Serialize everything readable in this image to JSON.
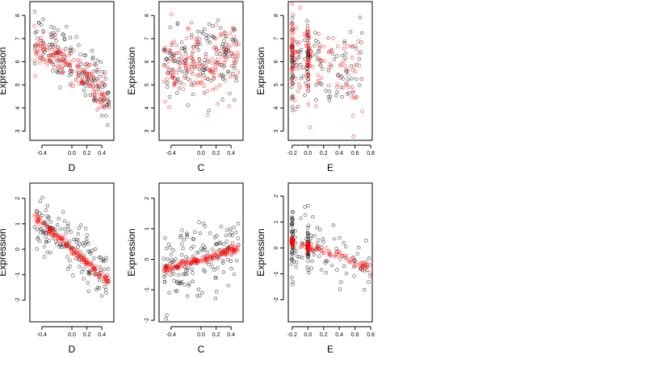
{
  "chart_data": [
    {
      "type": "scatter",
      "xlabel": "D",
      "ylabel": "Expression",
      "xlim": [
        -0.56,
        0.56
      ],
      "ylim": [
        2.6,
        8.6
      ],
      "xticks": [
        "-0.4",
        "0.0",
        "0.2",
        "0.4"
      ],
      "xtick_values": [
        -0.4,
        0.0,
        0.2,
        0.4
      ],
      "yticks": [
        "3",
        "4",
        "5",
        "6",
        "7",
        "8"
      ],
      "ytick_values": [
        3,
        4,
        5,
        6,
        7,
        8
      ],
      "grid": false,
      "legend": "none",
      "series": [
        {
          "marker_color": "#000000",
          "trend": {
            "x": [
              -0.5,
              -0.4,
              -0.2,
              0.0,
              0.2,
              0.4,
              0.5
            ],
            "y": [
              6.9,
              6.7,
              6.4,
              6.1,
              5.6,
              5.0,
              4.5
            ]
          },
          "spread": 0.6
        },
        {
          "marker_color": "#ff0000",
          "trend": {
            "x": [
              -0.5,
              -0.4,
              -0.2,
              0.0,
              0.2,
              0.4,
              0.5
            ],
            "y": [
              6.6,
              6.5,
              6.2,
              5.9,
              5.3,
              4.5,
              4.1
            ]
          },
          "spread": 0.35
        }
      ]
    },
    {
      "type": "scatter",
      "xlabel": "C",
      "ylabel": "Expression",
      "xlim": [
        -0.56,
        0.56
      ],
      "ylim": [
        2.6,
        8.6
      ],
      "xticks": [
        "-0.4",
        "0.0",
        "0.2",
        "0.4"
      ],
      "xtick_values": [
        -0.4,
        0.0,
        0.2,
        0.4
      ],
      "yticks": [
        "3",
        "4",
        "5",
        "6",
        "7",
        "8"
      ],
      "ytick_values": [
        3,
        4,
        5,
        6,
        7,
        8
      ],
      "grid": false,
      "legend": "none",
      "series": [
        {
          "marker_color": "#000000",
          "trend": {
            "x": [
              -0.5,
              0.0,
              0.5
            ],
            "y": [
              5.8,
              6.0,
              6.3
            ]
          },
          "spread": 0.75
        },
        {
          "marker_color": "#ff0000",
          "trend": {
            "x": [
              -0.5,
              0.0,
              0.5
            ],
            "y": [
              5.5,
              5.9,
              6.3
            ]
          },
          "spread": 0.8
        }
      ]
    },
    {
      "type": "scatter",
      "xlabel": "E",
      "ylabel": "Expression",
      "xlim": [
        -0.25,
        0.82
      ],
      "ylim": [
        2.6,
        8.6
      ],
      "xticks": [
        "-0.2",
        "0.0",
        "0.2",
        "0.4",
        "0.6",
        "0.8"
      ],
      "xtick_values": [
        -0.2,
        0.0,
        0.2,
        0.4,
        0.6,
        0.8
      ],
      "yticks": [
        "3",
        "4",
        "5",
        "6",
        "7",
        "8"
      ],
      "ytick_values": [
        3,
        4,
        5,
        6,
        7,
        8
      ],
      "grid": false,
      "legend": "none",
      "series": [
        {
          "marker_color": "#000000",
          "trend": {
            "x": [
              -0.2,
              0.0,
              0.4,
              0.7
            ],
            "y": [
              5.9,
              6.0,
              5.5,
              5.8
            ]
          },
          "spread": 0.9
        },
        {
          "marker_color": "#ff0000",
          "trend": {
            "x": [
              -0.2,
              0.0,
              0.3,
              0.7
            ],
            "y": [
              5.9,
              6.1,
              5.8,
              5.2
            ]
          },
          "spread": 1.0
        }
      ]
    },
    {
      "type": "scatter",
      "xlabel": "D",
      "ylabel": "Expression",
      "xlim": [
        -0.56,
        0.56
      ],
      "ylim": [
        -2.85,
        2.6
      ],
      "xticks": [
        "-0.4",
        "0.0",
        "0.2",
        "0.4"
      ],
      "xtick_values": [
        -0.4,
        0.0,
        0.2,
        0.4
      ],
      "yticks": [
        "-2",
        "-1",
        "0",
        "1",
        "2"
      ],
      "ytick_values": [
        -2,
        -1,
        0,
        1,
        2
      ],
      "grid": false,
      "legend": "none",
      "series": [
        {
          "marker_color": "#000000",
          "trend": {
            "x": [
              -0.5,
              0.0,
              0.5
            ],
            "y": [
              1.1,
              0.0,
              -1.2
            ]
          },
          "spread": 0.55
        },
        {
          "marker_color": "#ff0000",
          "trend": {
            "x": [
              -0.5,
              0.0,
              0.5
            ],
            "y": [
              1.3,
              0.0,
              -1.3
            ]
          },
          "spread": 0.08
        }
      ]
    },
    {
      "type": "scatter",
      "xlabel": "C",
      "ylabel": "Expression",
      "xlim": [
        -0.56,
        0.56
      ],
      "ylim": [
        -2.05,
        2.5
      ],
      "xticks": [
        "-0.4",
        "0.0",
        "0.2",
        "0.4"
      ],
      "xtick_values": [
        -0.4,
        0.0,
        0.2,
        0.4
      ],
      "yticks": [
        "-2",
        "-1",
        "0",
        "1",
        "2"
      ],
      "ytick_values": [
        -2,
        -1,
        0,
        1,
        2
      ],
      "grid": false,
      "legend": "none",
      "series": [
        {
          "marker_color": "#000000",
          "trend": {
            "x": [
              -0.5,
              0.0,
              0.5
            ],
            "y": [
              -0.3,
              0.0,
              0.4
            ]
          },
          "spread": 0.55
        },
        {
          "marker_color": "#ff0000",
          "trend": {
            "x": [
              -0.5,
              0.0,
              0.5
            ],
            "y": [
              -0.35,
              0.0,
              0.35
            ]
          },
          "spread": 0.06
        }
      ]
    },
    {
      "type": "scatter",
      "xlabel": "E",
      "ylabel": "Expression",
      "xlim": [
        -0.25,
        0.82
      ],
      "ylim": [
        -2.85,
        2.5
      ],
      "xticks": [
        "-0.2",
        "0.0",
        "0.2",
        "0.4",
        "0.6",
        "0.8"
      ],
      "xtick_values": [
        -0.2,
        0.0,
        0.2,
        0.4,
        0.6,
        0.8
      ],
      "yticks": [
        "-2",
        "-1",
        "0",
        "1",
        "2"
      ],
      "ytick_values": [
        -2,
        -1,
        0,
        1,
        2
      ],
      "grid": false,
      "legend": "none",
      "series": [
        {
          "marker_color": "#000000",
          "trend": {
            "x": [
              -0.2,
              0.0,
              0.4,
              0.8
            ],
            "y": [
              0.2,
              0.0,
              -0.3,
              -0.8
            ]
          },
          "spread": 0.6
        },
        {
          "marker_color": "#ff0000",
          "trend": {
            "x": [
              -0.2,
              0.0,
              0.4,
              0.8
            ],
            "y": [
              0.2,
              0.05,
              -0.3,
              -0.85
            ]
          },
          "spread": 0.08
        }
      ]
    }
  ]
}
